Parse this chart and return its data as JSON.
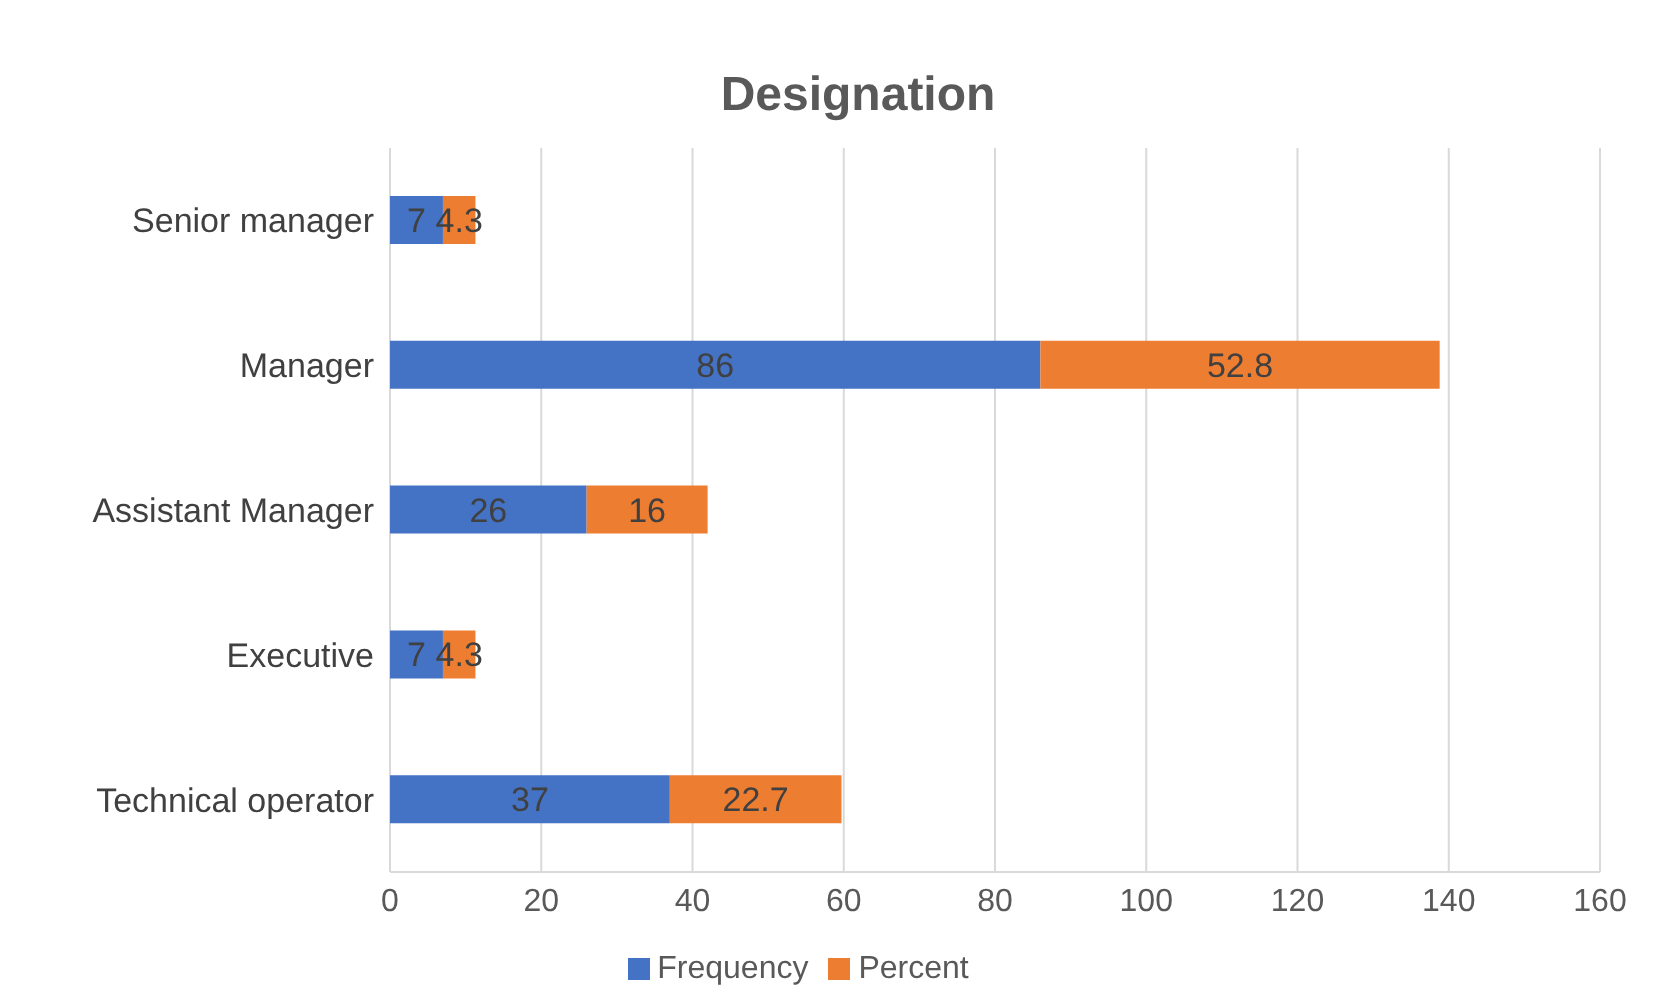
{
  "chart_data": {
    "type": "bar",
    "title": "Designation",
    "orientation": "horizontal",
    "stacked": true,
    "categories": [
      "Senior manager",
      "Manager",
      "Assistant Manager",
      "Executive",
      "Technical operator"
    ],
    "series": [
      {
        "name": "Frequency",
        "color": "#4472c4",
        "values": [
          7,
          86,
          26,
          7,
          37
        ]
      },
      {
        "name": "Percent",
        "color": "#ed7d31",
        "values": [
          4.3,
          52.8,
          16,
          4.3,
          22.7
        ]
      }
    ],
    "xlim": [
      0,
      160
    ],
    "xticks": [
      0,
      20,
      40,
      60,
      80,
      100,
      120,
      140,
      160
    ],
    "grid": "x",
    "legend": "bottom",
    "data_labels": true
  }
}
